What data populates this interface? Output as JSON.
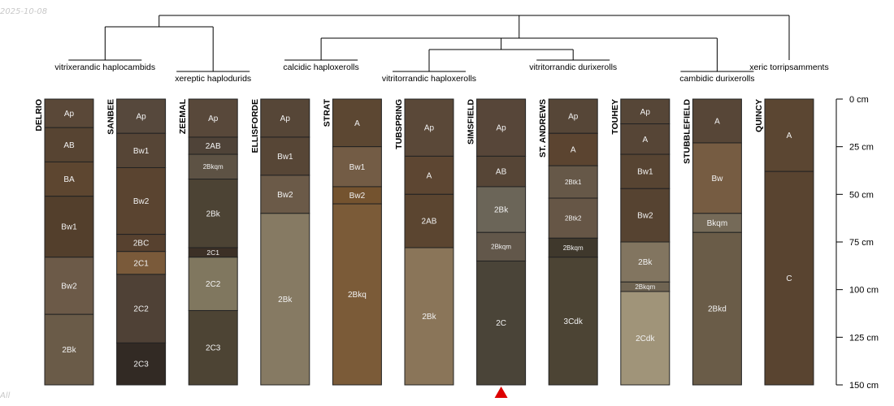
{
  "header": {
    "date": "2025-10-08"
  },
  "footer": {
    "label": "All"
  },
  "colors": {
    "stroke": "#222222",
    "horizon_text": "#f2f2f2",
    "marker": "#dd0000"
  },
  "depth_axis": {
    "ticks": [
      {
        "value": 0,
        "label": "0 cm"
      },
      {
        "value": 25,
        "label": "25 cm"
      },
      {
        "value": 50,
        "label": "50 cm"
      },
      {
        "value": 75,
        "label": "75 cm"
      },
      {
        "value": 100,
        "label": "100 cm"
      },
      {
        "value": 125,
        "label": "125 cm"
      },
      {
        "value": 150,
        "label": "150 cm"
      }
    ],
    "max_depth": 150
  },
  "groups": [
    {
      "label": "vitrixerandic haplocambids",
      "members": [
        0,
        1
      ]
    },
    {
      "label": "xereptic haplodurids",
      "members": [
        2
      ]
    },
    {
      "label": "calcidic haploxerolls",
      "members": [
        3,
        4
      ]
    },
    {
      "label": "vitritorrandic haploxerolls",
      "members": [
        5
      ]
    },
    {
      "label": "vitritorrandic durixerolls",
      "members": [
        6,
        7,
        8
      ]
    },
    {
      "label": "cambidic durixerolls",
      "members": [
        9
      ]
    },
    {
      "label": "xeric torripsamments",
      "members": [
        10
      ]
    }
  ],
  "dendrogram": [
    {
      "id": "g01",
      "children": [
        "G0",
        "G1"
      ]
    },
    {
      "id": "g34",
      "children": [
        "G3",
        "G4"
      ]
    },
    {
      "id": "g2345",
      "children": [
        "G2",
        "g34",
        "G5"
      ]
    },
    {
      "id": "g23456",
      "children": [
        "g2345",
        "G6"
      ]
    },
    {
      "id": "root",
      "children": [
        "g01",
        "g23456"
      ]
    }
  ],
  "marker": {
    "profile_index": 6
  },
  "profiles": [
    {
      "name": "DELRIO",
      "horizons": [
        {
          "name": "Ap",
          "top": 0,
          "bottom": 15,
          "color": "#5a4838"
        },
        {
          "name": "AB",
          "top": 15,
          "bottom": 33,
          "color": "#574432"
        },
        {
          "name": "BA",
          "top": 33,
          "bottom": 51,
          "color": "#5d4630"
        },
        {
          "name": "Bw1",
          "top": 51,
          "bottom": 83,
          "color": "#533f2c"
        },
        {
          "name": "Bw2",
          "top": 83,
          "bottom": 113,
          "color": "#6c5a48"
        },
        {
          "name": "2Bk",
          "top": 113,
          "bottom": 150,
          "color": "#6a5b48"
        }
      ]
    },
    {
      "name": "SANBEE",
      "horizons": [
        {
          "name": "Ap",
          "top": 0,
          "bottom": 18,
          "color": "#56483c"
        },
        {
          "name": "Bw1",
          "top": 18,
          "bottom": 36,
          "color": "#564536"
        },
        {
          "name": "Bw2",
          "top": 36,
          "bottom": 71,
          "color": "#5a4430"
        },
        {
          "name": "2BC",
          "top": 71,
          "bottom": 80,
          "color": "#57412f"
        },
        {
          "name": "2C1",
          "top": 80,
          "bottom": 92,
          "color": "#7a5a3a"
        },
        {
          "name": "2C2",
          "top": 92,
          "bottom": 128,
          "color": "#4f4136"
        },
        {
          "name": "2C3",
          "top": 128,
          "bottom": 150,
          "color": "#322a24"
        }
      ]
    },
    {
      "name": "ZEEMAL",
      "horizons": [
        {
          "name": "Ap",
          "top": 0,
          "bottom": 20,
          "color": "#58483a"
        },
        {
          "name": "2AB",
          "top": 20,
          "bottom": 29,
          "color": "#4f4338"
        },
        {
          "name": "2Bkqm",
          "top": 29,
          "bottom": 42,
          "color": "#5d5244"
        },
        {
          "name": "2Bk",
          "top": 42,
          "bottom": 78,
          "color": "#4c4334"
        },
        {
          "name": "2C1",
          "top": 78,
          "bottom": 83,
          "color": "#3c3026"
        },
        {
          "name": "2C2",
          "top": 83,
          "bottom": 111,
          "color": "#80775f"
        },
        {
          "name": "2C3",
          "top": 111,
          "bottom": 150,
          "color": "#4d4434"
        }
      ]
    },
    {
      "name": "ELLISFORDE",
      "horizons": [
        {
          "name": "Ap",
          "top": 0,
          "bottom": 20,
          "color": "#564637"
        },
        {
          "name": "Bw1",
          "top": 20,
          "bottom": 40,
          "color": "#574636"
        },
        {
          "name": "Bw2",
          "top": 40,
          "bottom": 60,
          "color": "#6b5a48"
        },
        {
          "name": "2Bk",
          "top": 60,
          "bottom": 150,
          "color": "#867a63"
        }
      ]
    },
    {
      "name": "STRAT",
      "horizons": [
        {
          "name": "A",
          "top": 0,
          "bottom": 25,
          "color": "#5c4732"
        },
        {
          "name": "Bw1",
          "top": 25,
          "bottom": 46,
          "color": "#735c45"
        },
        {
          "name": "Bw2",
          "top": 46,
          "bottom": 55,
          "color": "#74532f"
        },
        {
          "name": "2Bkq",
          "top": 55,
          "bottom": 150,
          "color": "#7b5b38"
        }
      ]
    },
    {
      "name": "TUBSPRING",
      "horizons": [
        {
          "name": "Ap",
          "top": 0,
          "bottom": 30,
          "color": "#5a4838"
        },
        {
          "name": "A",
          "top": 30,
          "bottom": 50,
          "color": "#5d4632"
        },
        {
          "name": "2AB",
          "top": 50,
          "bottom": 78,
          "color": "#5b4530"
        },
        {
          "name": "2Bk",
          "top": 78,
          "bottom": 150,
          "color": "#8a7559"
        }
      ]
    },
    {
      "name": "SIMSFIELD",
      "horizons": [
        {
          "name": "Ap",
          "top": 0,
          "bottom": 30,
          "color": "#574639"
        },
        {
          "name": "AB",
          "top": 30,
          "bottom": 46,
          "color": "#564536"
        },
        {
          "name": "2Bk",
          "top": 46,
          "bottom": 70,
          "color": "#6b6558"
        },
        {
          "name": "2Bkqm",
          "top": 70,
          "bottom": 85,
          "color": "#62574a"
        },
        {
          "name": "2C",
          "top": 85,
          "bottom": 150,
          "color": "#4a4438"
        }
      ]
    },
    {
      "name": "ST. ANDREWS",
      "horizons": [
        {
          "name": "Ap",
          "top": 0,
          "bottom": 18,
          "color": "#564637"
        },
        {
          "name": "A",
          "top": 18,
          "bottom": 35,
          "color": "#5b4430"
        },
        {
          "name": "2Btk1",
          "top": 35,
          "bottom": 52,
          "color": "#665848"
        },
        {
          "name": "2Btk2",
          "top": 52,
          "bottom": 73,
          "color": "#665646"
        },
        {
          "name": "2Bkqm",
          "top": 73,
          "bottom": 83,
          "color": "#3f382c"
        },
        {
          "name": "3Cdk",
          "top": 83,
          "bottom": 150,
          "color": "#4c4434"
        }
      ]
    },
    {
      "name": "TOUHEY",
      "horizons": [
        {
          "name": "Ap",
          "top": 0,
          "bottom": 13,
          "color": "#564637"
        },
        {
          "name": "A",
          "top": 13,
          "bottom": 29,
          "color": "#564536"
        },
        {
          "name": "Bw1",
          "top": 29,
          "bottom": 47,
          "color": "#574432"
        },
        {
          "name": "Bw2",
          "top": 47,
          "bottom": 75,
          "color": "#564331"
        },
        {
          "name": "2Bk",
          "top": 75,
          "bottom": 96,
          "color": "#827560"
        },
        {
          "name": "2Bkqm",
          "top": 96,
          "bottom": 101,
          "color": "#6f6452"
        },
        {
          "name": "2Cdk",
          "top": 101,
          "bottom": 150,
          "color": "#a09479"
        }
      ]
    },
    {
      "name": "STUBBLEFIELD",
      "horizons": [
        {
          "name": "A",
          "top": 0,
          "bottom": 23,
          "color": "#574637"
        },
        {
          "name": "Bw",
          "top": 23,
          "bottom": 60,
          "color": "#765c42"
        },
        {
          "name": "Bkqm",
          "top": 60,
          "bottom": 70,
          "color": "#756a58"
        },
        {
          "name": "2Bkd",
          "top": 70,
          "bottom": 150,
          "color": "#6a5c48"
        }
      ]
    },
    {
      "name": "QUINCY",
      "horizons": [
        {
          "name": "A",
          "top": 0,
          "bottom": 38,
          "color": "#5b4632"
        },
        {
          "name": "C",
          "top": 38,
          "bottom": 150,
          "color": "#594430"
        }
      ]
    }
  ]
}
